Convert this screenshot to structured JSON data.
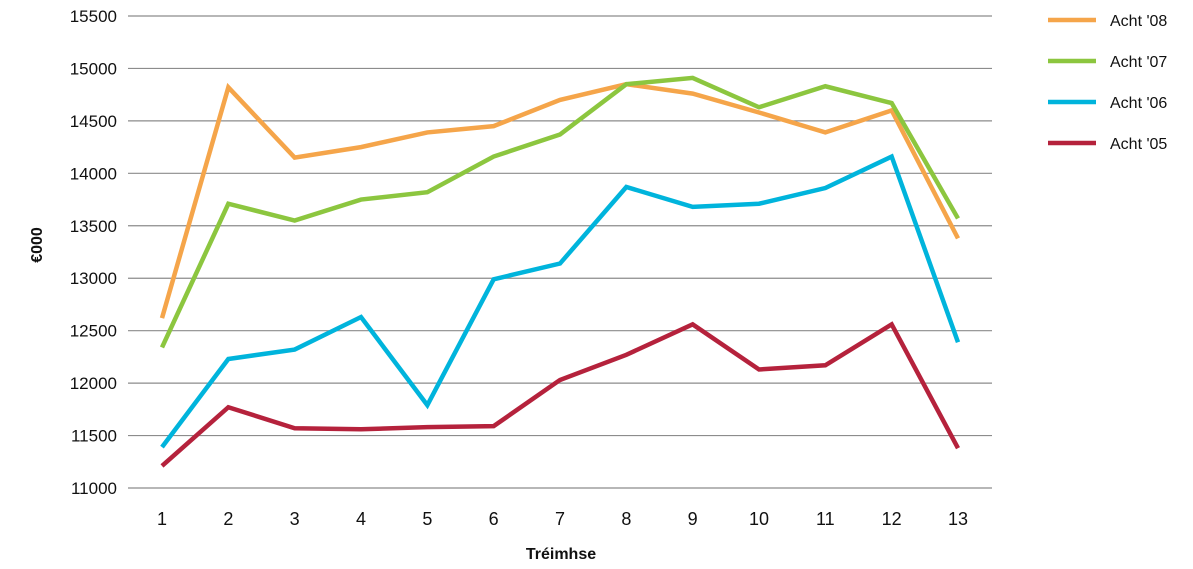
{
  "chart_data": {
    "type": "line",
    "title": "",
    "xlabel": "Tréimhse",
    "ylabel": "€000",
    "x": [
      1,
      2,
      3,
      4,
      5,
      6,
      7,
      8,
      9,
      10,
      11,
      12,
      13
    ],
    "ylim": [
      11000,
      15500
    ],
    "yticks": [
      11000,
      11500,
      12000,
      12500,
      13000,
      13500,
      14000,
      14500,
      15000,
      15500
    ],
    "grid": true,
    "legend_position": "top-right",
    "series": [
      {
        "name": "Acht '08",
        "color": "#f5a54a",
        "values": [
          12620,
          14820,
          14150,
          14250,
          14390,
          14450,
          14700,
          14850,
          14760,
          14580,
          14390,
          14600,
          13380
        ]
      },
      {
        "name": "Acht '07",
        "color": "#8cc63f",
        "values": [
          12340,
          13710,
          13550,
          13750,
          13820,
          14160,
          14370,
          14850,
          14910,
          14630,
          14830,
          14670,
          13570
        ]
      },
      {
        "name": "Acht '06",
        "color": "#00b4dc",
        "values": [
          11390,
          12230,
          12320,
          12630,
          11790,
          12990,
          13140,
          13870,
          13680,
          13710,
          13860,
          14160,
          12390
        ]
      },
      {
        "name": "Acht '05",
        "color": "#b5223c",
        "values": [
          11210,
          11770,
          11570,
          11560,
          11580,
          11590,
          12030,
          12270,
          12560,
          12130,
          12170,
          12560,
          11380
        ]
      }
    ]
  }
}
